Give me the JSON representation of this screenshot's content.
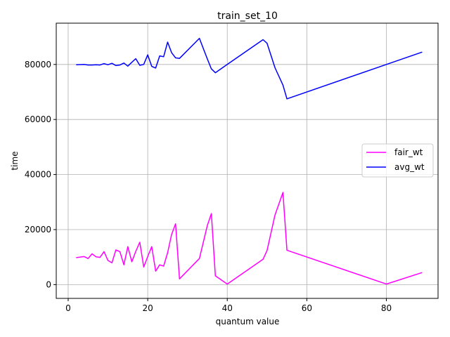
{
  "chart_data": {
    "type": "line",
    "title": "train_set_10",
    "xlabel": "quantum value",
    "ylabel": "time",
    "xlim": [
      -3,
      93
    ],
    "ylim": [
      -5000,
      95000
    ],
    "xticks": [
      0,
      20,
      40,
      60,
      80
    ],
    "yticks": [
      0,
      20000,
      40000,
      60000,
      80000
    ],
    "grid": true,
    "legend_position": "center-right",
    "series": [
      {
        "name": "fair_wt",
        "color": "#ff00ff",
        "x": [
          2,
          4,
          5,
          6,
          7,
          8,
          9,
          10,
          11,
          12,
          13,
          14,
          15,
          16,
          17,
          18,
          19,
          20,
          21,
          22,
          23,
          24,
          25,
          26,
          27,
          28,
          33,
          35,
          36,
          37,
          40,
          49,
          50,
          52,
          54,
          55,
          80,
          89
        ],
        "y": [
          9800,
          10200,
          9500,
          11200,
          10100,
          9900,
          12000,
          8800,
          7900,
          12600,
          12000,
          7200,
          13800,
          8300,
          12100,
          15400,
          6400,
          10200,
          13800,
          4900,
          7200,
          6700,
          11600,
          18200,
          22100,
          2100,
          9500,
          21500,
          25800,
          3200,
          200,
          9200,
          12400,
          25300,
          33500,
          12500,
          200,
          4400
        ]
      },
      {
        "name": "avg_wt",
        "color": "#0000ff",
        "x": [
          2,
          4,
          5,
          6,
          7,
          8,
          9,
          10,
          11,
          12,
          13,
          14,
          15,
          16,
          17,
          18,
          19,
          20,
          21,
          22,
          23,
          24,
          25,
          26,
          27,
          28,
          33,
          35,
          36,
          37,
          40,
          49,
          50,
          52,
          54,
          55,
          80,
          89
        ],
        "y": [
          79900,
          80000,
          79800,
          79800,
          79900,
          79800,
          80300,
          79900,
          80400,
          79600,
          79800,
          80500,
          79400,
          80800,
          82100,
          79700,
          80000,
          83500,
          79300,
          78700,
          83100,
          82800,
          88100,
          84300,
          82400,
          82200,
          89500,
          82000,
          78400,
          77000,
          80000,
          89000,
          87700,
          78800,
          72500,
          67500,
          80000,
          84500
        ]
      }
    ]
  }
}
